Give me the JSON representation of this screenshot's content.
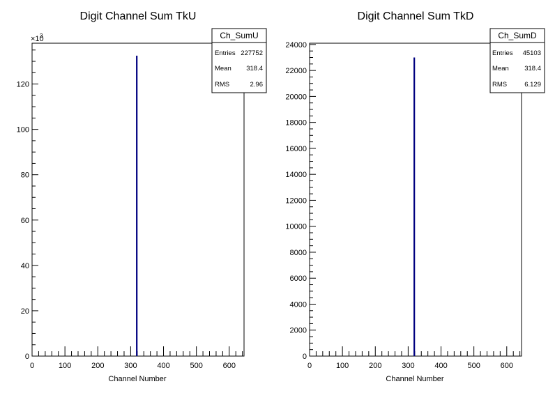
{
  "chart_data": [
    {
      "type": "bar",
      "title": "Digit Channel Sum TkU",
      "xlabel": "Channel Number",
      "ylabel": "",
      "xlim": [
        0,
        645
      ],
      "ylim": [
        0,
        138
      ],
      "y_multiplier": "×10",
      "y_multiplier_exp": "3",
      "xticks": [
        "0",
        "100",
        "200",
        "300",
        "400",
        "500",
        "600"
      ],
      "yticks": [
        "0",
        "20",
        "40",
        "60",
        "80",
        "100",
        "120"
      ],
      "series": [
        {
          "bin_center": 318.4,
          "value": 132.5
        }
      ],
      "colors": {
        "bar": "#000080"
      },
      "stats": {
        "name": "Ch_SumU",
        "rows": [
          {
            "label": "Entries",
            "value": "227752"
          },
          {
            "label": "Mean",
            "value": "318.4"
          },
          {
            "label": "RMS",
            "value": "2.96"
          }
        ]
      }
    },
    {
      "type": "bar",
      "title": "Digit Channel Sum TkD",
      "xlabel": "Channel Number",
      "ylabel": "",
      "xlim": [
        0,
        645
      ],
      "ylim": [
        0,
        24100
      ],
      "xticks": [
        "0",
        "100",
        "200",
        "300",
        "400",
        "500",
        "600"
      ],
      "yticks": [
        "0",
        "2000",
        "4000",
        "6000",
        "8000",
        "10000",
        "12000",
        "14000",
        "16000",
        "18000",
        "20000",
        "22000",
        "24000"
      ],
      "series": [
        {
          "bin_center": 318.4,
          "value": 23000
        }
      ],
      "colors": {
        "bar": "#000080"
      },
      "stats": {
        "name": "Ch_SumD",
        "rows": [
          {
            "label": "Entries",
            "value": "45103"
          },
          {
            "label": "Mean",
            "value": "318.4"
          },
          {
            "label": "RMS",
            "value": "6.129"
          }
        ]
      }
    }
  ]
}
